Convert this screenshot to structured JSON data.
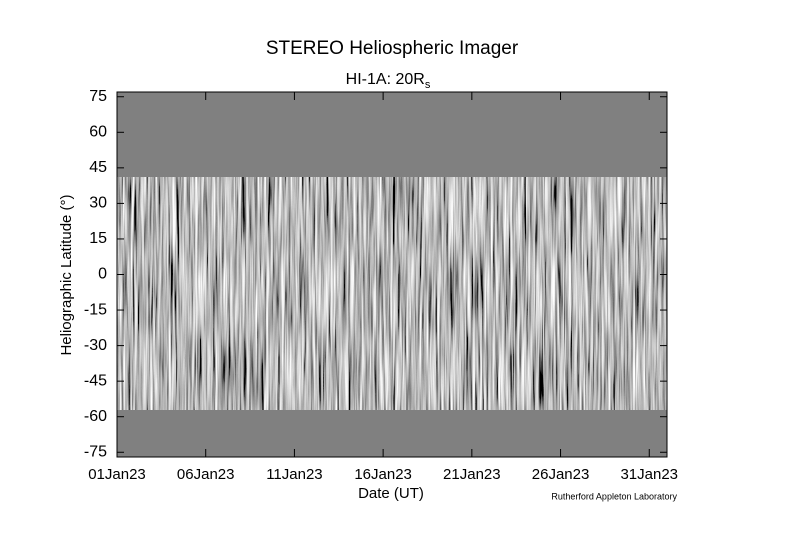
{
  "chart_data": {
    "type": "image",
    "title": "STEREO Heliospheric Imager",
    "subtitle": "HI-1A: 20R",
    "subtitle_subscript": "s",
    "xlabel": "Date (UT)",
    "ylabel": "Heliographic Latitude (°)",
    "credit": "Rutherford Appleton Laboratory",
    "xlim": [
      "2023-01-01",
      "2023-02-01"
    ],
    "xticks": [
      {
        "value": "2023-01-01",
        "label": "01Jan23"
      },
      {
        "value": "2023-01-06",
        "label": "06Jan23"
      },
      {
        "value": "2023-01-11",
        "label": "11Jan23"
      },
      {
        "value": "2023-01-16",
        "label": "16Jan23"
      },
      {
        "value": "2023-01-21",
        "label": "21Jan23"
      },
      {
        "value": "2023-01-26",
        "label": "26Jan23"
      },
      {
        "value": "2023-01-31",
        "label": "31Jan23"
      }
    ],
    "ylim": [
      -77,
      77
    ],
    "yticks": [
      75,
      60,
      45,
      30,
      15,
      0,
      -15,
      -30,
      -45,
      -60,
      -75
    ],
    "data_lat_range": [
      -57,
      41
    ],
    "background_color": "#808080"
  }
}
